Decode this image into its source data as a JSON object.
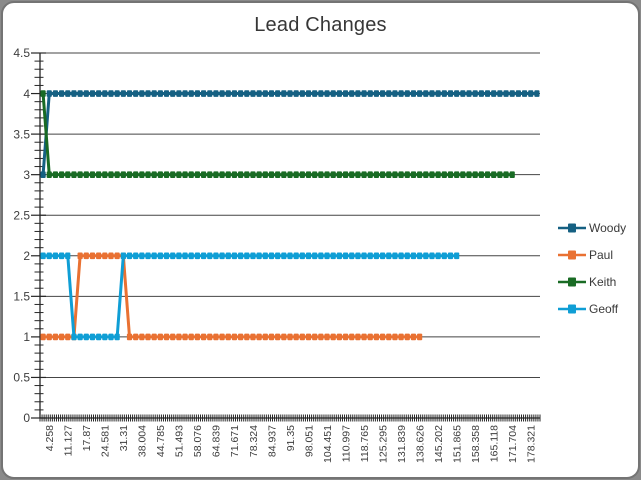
{
  "chart_data": {
    "type": "line",
    "title": "Lead Changes",
    "x_axis": {
      "tick_labels": [
        "4.258",
        "11.127",
        "17.87",
        "24.581",
        "31.31",
        "38.004",
        "44.785",
        "51.493",
        "58.076",
        "64.839",
        "71.671",
        "78.324",
        "84.937",
        "91.35",
        "98.051",
        "104.451",
        "110.997",
        "118.765",
        "125.295",
        "131.839",
        "138.626",
        "145.202",
        "151.865",
        "158.358",
        "165.118",
        "171.704",
        "178.321"
      ],
      "total_points": 81,
      "label_start_index": 1,
      "label_every": 3,
      "minor_ticks_per_point": 3
    },
    "y_axis": {
      "min": 0,
      "max": 4.5,
      "major_step": 0.5,
      "minor_step": 0.1,
      "tick_labels": [
        "4.5",
        "4",
        "3.5",
        "3",
        "2.5",
        "2",
        "1.5",
        "1",
        "0.5",
        "0"
      ]
    },
    "series": [
      {
        "name": "Woody",
        "color": "#156082",
        "segments": [
          {
            "from": 0,
            "to": 0,
            "value": 3
          },
          {
            "from": 1,
            "to": 80,
            "value": 4
          }
        ]
      },
      {
        "name": "Paul",
        "color": "#E97132",
        "segments": [
          {
            "from": 0,
            "to": 5,
            "value": 1
          },
          {
            "from": 6,
            "to": 13,
            "value": 2
          },
          {
            "from": 14,
            "to": 61,
            "value": 1
          }
        ]
      },
      {
        "name": "Keith",
        "color": "#196B24",
        "segments": [
          {
            "from": 0,
            "to": 0,
            "value": 4
          },
          {
            "from": 1,
            "to": 76,
            "value": 3
          }
        ]
      },
      {
        "name": "Geoff",
        "color": "#0F9ED5",
        "segments": [
          {
            "from": 0,
            "to": 4,
            "value": 2
          },
          {
            "from": 5,
            "to": 12,
            "value": 1
          },
          {
            "from": 13,
            "to": 67,
            "value": 2
          }
        ]
      }
    ],
    "legend": {
      "position": "right",
      "entries": [
        "Woody",
        "Paul",
        "Keith",
        "Geoff"
      ]
    },
    "grid": "horizontal-only",
    "colors": {
      "axis": "#262626",
      "gridline": "#454545",
      "label_text": "#3D3D3D",
      "title_text": "#373737",
      "card_background": "#FFFFFF",
      "canvas_background": "#8A8A8A",
      "card_border": "#747474"
    }
  }
}
